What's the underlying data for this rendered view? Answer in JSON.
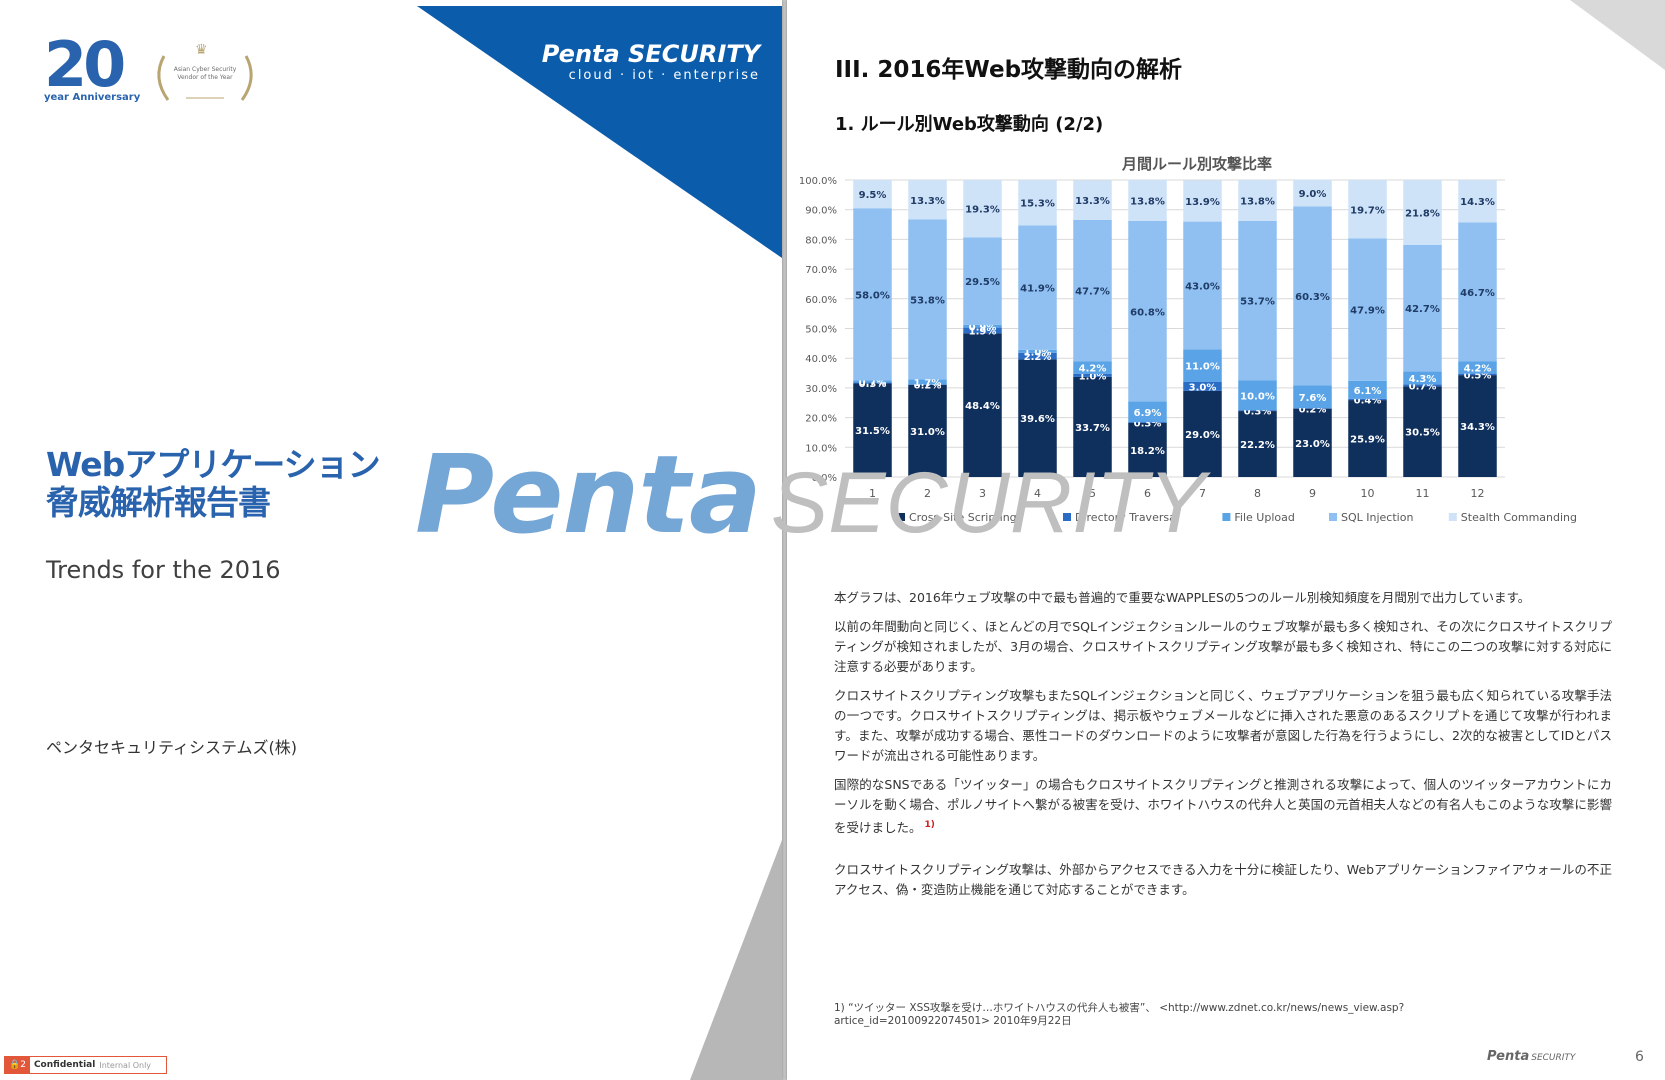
{
  "cover": {
    "anniversary_number": "20",
    "anniversary_text": "year Anniversary",
    "award_text": "Asian Cyber Security Vendor of the Year",
    "brand_name": "Penta SECURITY",
    "brand_tagline": "cloud · iot · enterprise",
    "title_line1": "Webアプリケーション",
    "title_line2": "脅威解析報告書",
    "subtitle": "Trends for the 2016",
    "company": "ペンタセキュリティシステムズ(株)",
    "confidential_num": "2",
    "confidential_label": "Confidential",
    "confidential_note": "Internal Only",
    "colors": {
      "brand_blue": "#0b5cab",
      "title_blue": "#2a63ad",
      "confidential": "#e2563a"
    }
  },
  "watermark": {
    "part1": "Penta",
    "part2": "SECURITY"
  },
  "inner": {
    "section_title": "III. 2016年Web攻撃動向の解析",
    "subsection_title": "1. ルール別Web攻撃動向 (2/2)",
    "paragraphs": [
      "本グラフは、2016年ウェブ攻撃の中で最も普遍的で重要なWAPPLESの5つのルール別検知頻度を月間別で出力しています。",
      "以前の年間動向と同じく、ほとんどの月でSQLインジェクションルールのウェブ攻撃が最も多く検知され、その次にクロスサイトスクリプティングが検知されましたが、3月の場合、クロスサイトスクリプティング攻撃が最も多く検知され、特にこの二つの攻撃に対する対応に注意する必要があります。",
      "クロスサイトスクリプティング攻撃もまたSQLインジェクションと同じく、ウェブアプリケーションを狙う最も広く知られている攻撃手法の一つです。クロスサイトスクリプティングは、掲示板やウェブメールなどに挿入された悪意のあるスクリプトを通じて攻撃が行われます。また、攻撃が成功する場合、悪性コードのダウンロードのように攻撃者が意図した行為を行うようにし、2次的な被害としてIDとパスワードが流出される可能性あります。",
      "国際的なSNSである「ツイッター」の場合もクロスサイトスクリプティングと推測される攻撃によって、個人のツイッターアカウントにカーソルを動く場合、ポルノサイトへ繋がる被害を受け、ホワイトハウスの代弁人と英国の元首相夫人などの有名人もこのような攻撃に影響を受けました。",
      "クロスサイトスクリプティング攻撃は、外部からアクセスできる入力を十分に検証したり、Webアプリケーションファイアウォールの不正アクセス、偽・変造防止機能を通じて対応することができます。"
    ],
    "footnote_marker": "1)",
    "footnote": "1) “ツイッター XSS攻撃を受け…ホワイトハウスの代弁人も被害”、 <http://www.zdnet.co.kr/news/news_view.asp?artice_id=20100922074501> 2010年9月22日",
    "footer_brand": "Penta",
    "footer_brand_small": "SECURITY",
    "page_number": "6"
  },
  "chart_data": {
    "type": "bar",
    "stacked": true,
    "title": "月間ルール別攻撃比率",
    "categories": [
      "1",
      "2",
      "3",
      "4",
      "5",
      "6",
      "7",
      "8",
      "9",
      "10",
      "11",
      "12"
    ],
    "y_ticks": [
      "0.0%",
      "10.0%",
      "20.0%",
      "30.0%",
      "40.0%",
      "50.0%",
      "60.0%",
      "70.0%",
      "80.0%",
      "90.0%",
      "100.0%"
    ],
    "ylim": [
      0,
      100
    ],
    "legend_position": "bottom",
    "series": [
      {
        "name": "Cross-Site Scripting",
        "color": "#0f2f5c",
        "label_color": "#ffffff",
        "values": [
          31.5,
          31.0,
          48.4,
          39.6,
          33.7,
          18.2,
          29.0,
          22.2,
          23.0,
          25.9,
          30.5,
          34.3
        ],
        "labels": [
          "31.5%",
          "31.0%",
          "48.4%",
          "39.6%",
          "33.7%",
          "18.2%",
          "29.0%",
          "22.2%",
          "23.0%",
          "25.9%",
          "30.5%",
          "34.3%"
        ]
      },
      {
        "name": "Directory Traversal",
        "color": "#2b6cc4",
        "label_color": "#ffffff",
        "values": [
          0.3,
          0.2,
          1.9,
          2.2,
          1.0,
          0.3,
          3.0,
          0.3,
          0.2,
          0.4,
          0.7,
          0.5
        ],
        "labels": [
          "0.3%",
          "0.2%",
          "1.9%",
          "2.2%",
          "1.0%",
          "0.3%",
          "3.0%",
          "0.3%",
          "0.2%",
          "0.4%",
          "0.7%",
          "0.5%"
        ]
      },
      {
        "name": "File Upload",
        "color": "#5aa3e6",
        "label_color": "#ffffff",
        "values": [
          0.7,
          1.7,
          0.9,
          1.0,
          4.2,
          6.9,
          11.0,
          10.0,
          7.6,
          6.1,
          4.3,
          4.2
        ],
        "labels": [
          "0.7%",
          "1.7%",
          "0.9%",
          "1.0%",
          "4.2%",
          "6.9%",
          "11.0%",
          "10.0%",
          "7.6%",
          "6.1%",
          "4.3%",
          "4.2%"
        ]
      },
      {
        "name": "SQL Injection",
        "color": "#8fc0f1",
        "label_color": "#1f3b66",
        "values": [
          58.0,
          53.8,
          29.5,
          41.9,
          47.7,
          60.8,
          43.0,
          53.7,
          60.3,
          47.9,
          42.7,
          46.7
        ],
        "labels": [
          "58.0%",
          "53.8%",
          "29.5%",
          "41.9%",
          "47.7%",
          "60.8%",
          "43.0%",
          "53.7%",
          "60.3%",
          "47.9%",
          "42.7%",
          "46.7%"
        ]
      },
      {
        "name": "Stealth Commanding",
        "color": "#cfe3f8",
        "label_color": "#1f3b66",
        "values": [
          9.5,
          13.3,
          19.3,
          15.3,
          13.3,
          13.8,
          13.9,
          13.8,
          9.0,
          19.7,
          21.8,
          14.3
        ],
        "labels": [
          "9.5%",
          "13.3%",
          "19.3%",
          "15.3%",
          "13.3%",
          "13.8%",
          "13.9%",
          "13.8%",
          "9.0%",
          "19.7%",
          "21.8%",
          "14.3%"
        ]
      }
    ]
  }
}
